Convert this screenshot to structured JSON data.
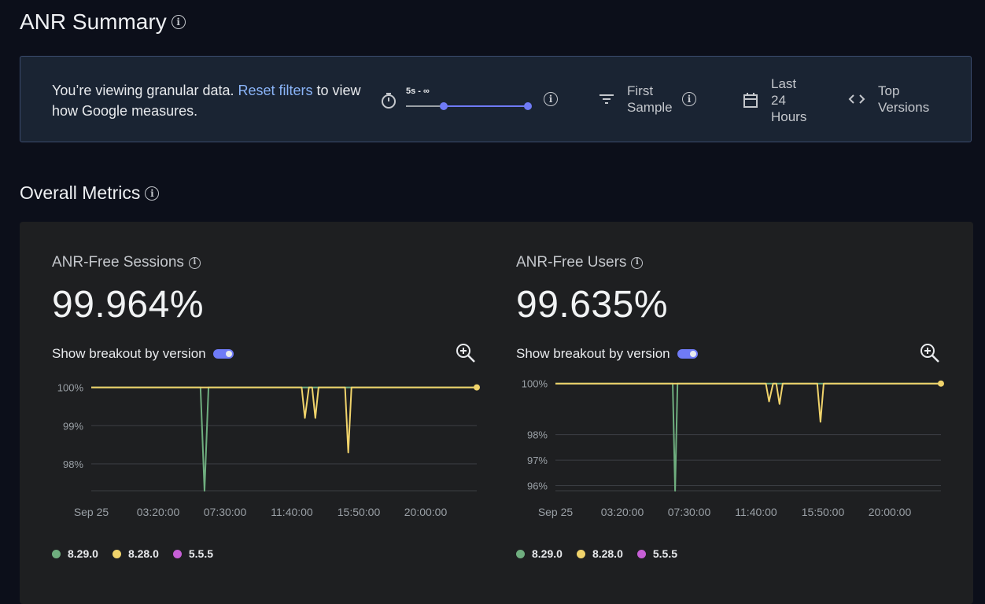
{
  "page": {
    "title": "ANR Summary"
  },
  "banner": {
    "message_before": "You’re viewing granular data. ",
    "reset_link": "Reset filters",
    "message_after": " to view how Google measures.",
    "slider_label": "5s - ∞",
    "filters": [
      {
        "label": "First Sample",
        "icon": "filter-icon"
      },
      {
        "label": "Last 24 Hours",
        "icon": "calendar-icon"
      },
      {
        "label": "Top Versions",
        "icon": "code-icon"
      }
    ]
  },
  "overall": {
    "title": "Overall Metrics",
    "breakout_label": "Show breakout by version",
    "colors": {
      "8.29.0": "#6fae7f",
      "8.28.0": "#f0d36b",
      "5.5.5": "#c65fd6"
    },
    "legend": [
      "8.29.0",
      "8.28.0",
      "5.5.5"
    ],
    "sessions": {
      "label": "ANR-Free Sessions",
      "value": "99.964%"
    },
    "users": {
      "label": "ANR-Free Users",
      "value": "99.635%"
    }
  },
  "chart_data": [
    {
      "type": "line",
      "title": "ANR-Free Sessions",
      "x_ticks": [
        "Sep 25",
        "03:20:00",
        "07:30:00",
        "11:40:00",
        "15:50:00",
        "20:00:00"
      ],
      "y_ticks": [
        "100%",
        "99%",
        "98%"
      ],
      "ylim": [
        97.3,
        100.3
      ],
      "x_range": [
        0,
        24
      ],
      "series": [
        {
          "name": "8.29.0",
          "color": "#6fae7f",
          "points": [
            [
              0,
              100
            ],
            [
              6.8,
              100
            ],
            [
              7.05,
              97.3
            ],
            [
              7.3,
              100
            ],
            [
              24,
              100
            ]
          ]
        },
        {
          "name": "8.28.0",
          "color": "#f0d36b",
          "points": [
            [
              0,
              100
            ],
            [
              13.1,
              100
            ],
            [
              13.3,
              99.2
            ],
            [
              13.55,
              100
            ],
            [
              13.75,
              100
            ],
            [
              13.95,
              99.2
            ],
            [
              14.15,
              100
            ],
            [
              15.8,
              100
            ],
            [
              16.0,
              98.3
            ],
            [
              16.2,
              100
            ],
            [
              24,
              100
            ]
          ]
        }
      ]
    },
    {
      "type": "line",
      "title": "ANR-Free Users",
      "x_ticks": [
        "Sep 25",
        "03:20:00",
        "07:30:00",
        "11:40:00",
        "15:50:00",
        "20:00:00"
      ],
      "y_ticks": [
        "100%",
        "98%",
        "97%",
        "96%"
      ],
      "ylim": [
        95.8,
        100.3
      ],
      "x_range": [
        0,
        24
      ],
      "series": [
        {
          "name": "8.29.0",
          "color": "#6fae7f",
          "points": [
            [
              0,
              100
            ],
            [
              7.3,
              100
            ],
            [
              7.45,
              95.8
            ],
            [
              7.6,
              100
            ],
            [
              24,
              100
            ]
          ]
        },
        {
          "name": "8.28.0",
          "color": "#f0d36b",
          "points": [
            [
              0,
              100
            ],
            [
              13.1,
              100
            ],
            [
              13.3,
              99.3
            ],
            [
              13.55,
              100
            ],
            [
              13.75,
              100
            ],
            [
              13.95,
              99.2
            ],
            [
              14.15,
              100
            ],
            [
              16.3,
              100
            ],
            [
              16.5,
              98.5
            ],
            [
              16.7,
              100
            ],
            [
              24,
              100
            ]
          ]
        }
      ]
    }
  ]
}
